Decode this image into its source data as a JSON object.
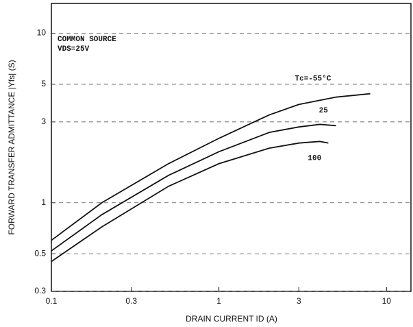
{
  "chart_data": {
    "type": "line",
    "xlabel": "DRAIN CURRENT ID (A)",
    "ylabel": "FORWARD TRANSFER ADMITTANCE |Yfs| (S)",
    "annotations": [
      "COMMON SOURCE",
      "VDS=25V"
    ],
    "x_log": true,
    "y_log": true,
    "grid": true,
    "xlim": [
      0.1,
      14
    ],
    "ylim": [
      0.3,
      15
    ],
    "xticks": [
      0.1,
      0.3,
      1,
      3,
      10
    ],
    "yticks": [
      0.3,
      0.5,
      1,
      3,
      5,
      10
    ],
    "series": [
      {
        "name": "Tc=-55°C",
        "color": "#111111",
        "x": [
          0.1,
          0.2,
          0.5,
          1,
          2,
          3,
          5,
          8
        ],
        "values": [
          0.6,
          1.0,
          1.7,
          2.4,
          3.3,
          3.8,
          4.2,
          4.4
        ]
      },
      {
        "name": "25",
        "color": "#111111",
        "x": [
          0.1,
          0.2,
          0.5,
          1,
          2,
          3,
          4,
          5
        ],
        "values": [
          0.52,
          0.85,
          1.45,
          2.0,
          2.6,
          2.8,
          2.9,
          2.85
        ]
      },
      {
        "name": "100",
        "color": "#111111",
        "x": [
          0.1,
          0.2,
          0.5,
          1,
          2,
          3,
          4,
          4.5
        ],
        "values": [
          0.45,
          0.72,
          1.25,
          1.7,
          2.1,
          2.25,
          2.3,
          2.25
        ]
      }
    ]
  }
}
